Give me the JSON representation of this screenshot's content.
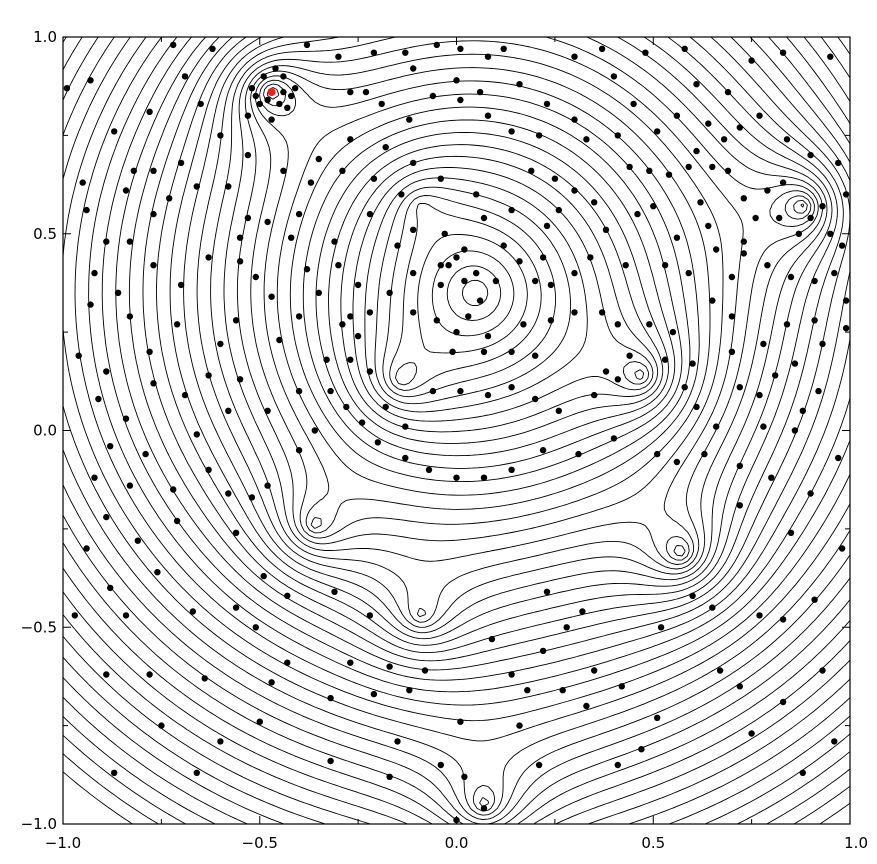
{
  "chart_data": {
    "type": "contour",
    "title": "",
    "xlabel": "",
    "ylabel": "",
    "xlim": [
      -1.0,
      1.0
    ],
    "ylim": [
      -1.0,
      1.0
    ],
    "x_ticks": [
      "−1.0",
      "−0.5",
      "0.0",
      "0.5",
      "1.0"
    ],
    "y_ticks": [
      "−1.0",
      "−0.5",
      "0.0",
      "0.5",
      "1.0"
    ],
    "x_tick_values": [
      -1.0,
      -0.5,
      0.0,
      0.5,
      1.0
    ],
    "y_tick_values": [
      -1.0,
      -0.5,
      0.0,
      0.5,
      1.0
    ],
    "grid": false,
    "line_color": "#000000",
    "point_color": "#000000",
    "highlight_color": "#e8231c",
    "highlight_point": {
      "x": -0.47,
      "y": 0.86
    },
    "contour_centers": [
      {
        "x": -0.47,
        "y": 0.86,
        "strength": 1.0
      },
      {
        "x": 0.88,
        "y": 0.57,
        "strength": 1.0
      },
      {
        "x": -0.09,
        "y": 0.57,
        "strength": 0.35
      },
      {
        "x": -0.14,
        "y": 0.13,
        "strength": 0.6
      },
      {
        "x": 0.47,
        "y": 0.14,
        "strength": 0.8
      },
      {
        "x": -0.36,
        "y": -0.24,
        "strength": 0.7
      },
      {
        "x": 0.57,
        "y": -0.31,
        "strength": 0.9
      },
      {
        "x": -0.09,
        "y": -0.47,
        "strength": 0.6
      },
      {
        "x": 0.07,
        "y": -0.95,
        "strength": 0.8
      }
    ],
    "points": [
      [
        -0.99,
        0.87
      ],
      [
        -0.93,
        0.89
      ],
      [
        -0.87,
        0.76
      ],
      [
        -0.82,
        0.66
      ],
      [
        -0.78,
        0.81
      ],
      [
        -0.95,
        0.63
      ],
      [
        -0.94,
        0.56
      ],
      [
        -0.84,
        0.61
      ],
      [
        -0.89,
        0.48
      ],
      [
        -0.77,
        0.55
      ],
      [
        -0.83,
        0.48
      ],
      [
        -0.92,
        0.4
      ],
      [
        -0.86,
        0.35
      ],
      [
        -0.77,
        0.42
      ],
      [
        -0.93,
        0.32
      ],
      [
        -0.83,
        0.29
      ],
      [
        -0.96,
        0.19
      ],
      [
        -0.89,
        0.15
      ],
      [
        -0.78,
        0.2
      ],
      [
        -0.71,
        0.27
      ],
      [
        -0.69,
        0.09
      ],
      [
        -0.77,
        0.12
      ],
      [
        -0.91,
        0.08
      ],
      [
        -0.84,
        0.03
      ],
      [
        -0.88,
        -0.04
      ],
      [
        -0.79,
        -0.06
      ],
      [
        -0.92,
        -0.12
      ],
      [
        -0.83,
        -0.14
      ],
      [
        -0.72,
        -0.15
      ],
      [
        -0.89,
        -0.22
      ],
      [
        -0.81,
        -0.28
      ],
      [
        -0.71,
        -0.23
      ],
      [
        -0.94,
        -0.3
      ],
      [
        -0.76,
        -0.36
      ],
      [
        -0.88,
        -0.4
      ],
      [
        -0.97,
        -0.47
      ],
      [
        -0.84,
        -0.47
      ],
      [
        -0.67,
        -0.46
      ],
      [
        -0.89,
        -0.62
      ],
      [
        -0.78,
        -0.62
      ],
      [
        -0.64,
        -0.63
      ],
      [
        -0.75,
        -0.75
      ],
      [
        -0.87,
        -0.87
      ],
      [
        -0.66,
        -0.87
      ],
      [
        -0.6,
        -0.79
      ],
      [
        -0.5,
        -0.74
      ],
      [
        -0.43,
        -0.59
      ],
      [
        -0.32,
        -0.68
      ],
      [
        -0.47,
        -0.64
      ],
      [
        -0.56,
        -0.45
      ],
      [
        -0.51,
        -0.5
      ],
      [
        -0.43,
        -0.42
      ],
      [
        -0.49,
        -0.37
      ],
      [
        -0.31,
        -0.41
      ],
      [
        -0.27,
        -0.59
      ],
      [
        -0.22,
        -0.47
      ],
      [
        -0.17,
        -0.6
      ],
      [
        -0.08,
        -0.61
      ],
      [
        -0.12,
        -0.66
      ],
      [
        -0.21,
        -0.67
      ],
      [
        -0.32,
        -0.84
      ],
      [
        -0.17,
        -0.88
      ],
      [
        -0.15,
        -0.79
      ],
      [
        0.01,
        -0.74
      ],
      [
        -0.04,
        -0.85
      ],
      [
        0.02,
        -0.88
      ],
      [
        0.0,
        -0.99
      ],
      [
        0.07,
        -0.96
      ],
      [
        0.16,
        -0.75
      ],
      [
        0.21,
        -0.85
      ],
      [
        0.18,
        -0.66
      ],
      [
        0.09,
        -0.53
      ],
      [
        0.14,
        -0.62
      ],
      [
        0.22,
        -0.56
      ],
      [
        0.28,
        -0.5
      ],
      [
        0.23,
        -0.41
      ],
      [
        0.32,
        -0.46
      ],
      [
        0.35,
        -0.61
      ],
      [
        0.27,
        -0.66
      ],
      [
        0.33,
        -0.7
      ],
      [
        0.42,
        -0.65
      ],
      [
        0.41,
        -0.85
      ],
      [
        0.47,
        -0.81
      ],
      [
        0.51,
        -0.73
      ],
      [
        0.52,
        -0.5
      ],
      [
        0.6,
        -0.42
      ],
      [
        0.65,
        -0.45
      ],
      [
        0.67,
        -0.61
      ],
      [
        0.72,
        -0.65
      ],
      [
        0.75,
        -0.77
      ],
      [
        0.83,
        -0.69
      ],
      [
        0.88,
        -0.87
      ],
      [
        0.96,
        -0.79
      ],
      [
        0.93,
        -0.61
      ],
      [
        0.77,
        -0.47
      ],
      [
        0.83,
        -0.48
      ],
      [
        0.91,
        -0.43
      ],
      [
        0.98,
        -0.3
      ],
      [
        0.85,
        -0.26
      ],
      [
        0.72,
        -0.19
      ],
      [
        0.8,
        -0.12
      ],
      [
        0.9,
        -0.16
      ],
      [
        0.97,
        -0.07
      ],
      [
        0.86,
        0.0
      ],
      [
        0.78,
        0.01
      ],
      [
        0.72,
        -0.09
      ],
      [
        0.66,
        0.01
      ],
      [
        0.63,
        -0.06
      ],
      [
        0.56,
        -0.08
      ],
      [
        0.51,
        -0.06
      ],
      [
        0.4,
        -0.02
      ],
      [
        0.31,
        -0.06
      ],
      [
        0.22,
        -0.05
      ],
      [
        0.14,
        -0.1
      ],
      [
        0.07,
        -0.12
      ],
      [
        0.0,
        -0.12
      ],
      [
        -0.07,
        -0.1
      ],
      [
        -0.13,
        -0.07
      ],
      [
        -0.2,
        -0.03
      ],
      [
        -0.24,
        0.02
      ],
      [
        -0.28,
        0.06
      ],
      [
        -0.32,
        0.1
      ],
      [
        -0.33,
        0.18
      ],
      [
        -0.27,
        0.18
      ],
      [
        -0.22,
        0.15
      ],
      [
        -0.18,
        0.06
      ],
      [
        -0.13,
        0.01
      ],
      [
        -0.06,
        0.1
      ],
      [
        0.01,
        0.1
      ],
      [
        0.08,
        0.09
      ],
      [
        0.14,
        0.11
      ],
      [
        0.2,
        0.08
      ],
      [
        0.26,
        0.05
      ],
      [
        0.35,
        0.09
      ],
      [
        0.38,
        0.15
      ],
      [
        0.41,
        0.13
      ],
      [
        0.44,
        0.19
      ],
      [
        0.53,
        0.18
      ],
      [
        0.58,
        0.11
      ],
      [
        0.61,
        0.06
      ],
      [
        0.6,
        0.17
      ],
      [
        0.55,
        0.25
      ],
      [
        0.49,
        0.27
      ],
      [
        0.41,
        0.27
      ],
      [
        0.37,
        0.3
      ],
      [
        0.3,
        0.3
      ],
      [
        0.24,
        0.28
      ],
      [
        0.17,
        0.27
      ],
      [
        0.08,
        0.24
      ],
      [
        0.0,
        0.25
      ],
      [
        -0.05,
        0.28
      ],
      [
        -0.11,
        0.3
      ],
      [
        -0.17,
        0.35
      ],
      [
        -0.22,
        0.3
      ],
      [
        -0.27,
        0.29
      ],
      [
        -0.25,
        0.37
      ],
      [
        -0.3,
        0.42
      ],
      [
        -0.35,
        0.35
      ],
      [
        -0.4,
        0.29
      ],
      [
        -0.45,
        0.23
      ],
      [
        -0.47,
        0.34
      ],
      [
        -0.51,
        0.39
      ],
      [
        -0.55,
        0.43
      ],
      [
        -0.56,
        0.28
      ],
      [
        -0.6,
        0.22
      ],
      [
        -0.55,
        0.13
      ],
      [
        -0.58,
        0.05
      ],
      [
        -0.48,
        0.05
      ],
      [
        -0.4,
        0.1
      ],
      [
        -0.36,
        0.0
      ],
      [
        -0.4,
        -0.05
      ],
      [
        -0.48,
        -0.14
      ],
      [
        -0.52,
        -0.17
      ],
      [
        -0.56,
        -0.26
      ],
      [
        -0.58,
        -0.16
      ],
      [
        -0.63,
        -0.1
      ],
      [
        -0.66,
        -0.01
      ],
      [
        -0.63,
        0.14
      ],
      [
        -0.7,
        0.37
      ],
      [
        -0.63,
        0.44
      ],
      [
        -0.55,
        0.49
      ],
      [
        -0.48,
        0.53
      ],
      [
        -0.42,
        0.49
      ],
      [
        -0.4,
        0.55
      ],
      [
        -0.37,
        0.63
      ],
      [
        -0.29,
        0.66
      ],
      [
        -0.21,
        0.64
      ],
      [
        -0.14,
        0.6
      ],
      [
        -0.11,
        0.51
      ],
      [
        -0.03,
        0.5
      ],
      [
        0.02,
        0.46
      ],
      [
        0.07,
        0.54
      ],
      [
        0.12,
        0.47
      ],
      [
        0.16,
        0.43
      ],
      [
        0.1,
        0.38
      ],
      [
        0.02,
        0.38
      ],
      [
        -0.04,
        0.42
      ],
      [
        -0.11,
        0.4
      ],
      [
        -0.15,
        0.47
      ],
      [
        -0.22,
        0.55
      ],
      [
        -0.31,
        0.48
      ],
      [
        -0.38,
        0.41
      ],
      [
        -0.29,
        0.27
      ],
      [
        -0.25,
        0.24
      ],
      [
        0.06,
        0.33
      ],
      [
        -0.04,
        0.37
      ],
      [
        -0.02,
        0.42
      ],
      [
        0.0,
        0.44
      ],
      [
        0.05,
        0.4
      ],
      [
        0.03,
        0.29
      ],
      [
        -0.01,
        0.2
      ],
      [
        0.07,
        0.2
      ],
      [
        0.14,
        0.2
      ],
      [
        0.2,
        0.19
      ],
      [
        0.2,
        0.38
      ],
      [
        0.22,
        0.44
      ],
      [
        0.23,
        0.52
      ],
      [
        0.14,
        0.56
      ],
      [
        0.05,
        0.6
      ],
      [
        -0.04,
        0.64
      ],
      [
        -0.11,
        0.68
      ],
      [
        -0.18,
        0.72
      ],
      [
        -0.27,
        0.74
      ],
      [
        -0.35,
        0.69
      ],
      [
        -0.44,
        0.66
      ],
      [
        -0.53,
        0.7
      ],
      [
        -0.6,
        0.75
      ],
      [
        -0.65,
        0.83
      ],
      [
        -0.69,
        0.9
      ],
      [
        -0.7,
        0.68
      ],
      [
        -0.66,
        0.62
      ],
      [
        -0.73,
        0.59
      ],
      [
        -0.77,
        0.66
      ],
      [
        -0.58,
        0.62
      ],
      [
        -0.53,
        0.54
      ],
      [
        -0.27,
        0.86
      ],
      [
        -0.23,
        0.86
      ],
      [
        -0.19,
        0.83
      ],
      [
        -0.21,
        0.96
      ],
      [
        -0.11,
        0.92
      ],
      [
        -0.12,
        0.79
      ],
      [
        -0.06,
        0.85
      ],
      [
        0.0,
        0.89
      ],
      [
        0.01,
        0.84
      ],
      [
        0.06,
        0.86
      ],
      [
        0.08,
        0.8
      ],
      [
        0.14,
        0.76
      ],
      [
        0.21,
        0.75
      ],
      [
        0.19,
        0.66
      ],
      [
        0.25,
        0.64
      ],
      [
        0.3,
        0.61
      ],
      [
        0.26,
        0.56
      ],
      [
        0.35,
        0.58
      ],
      [
        0.38,
        0.51
      ],
      [
        0.34,
        0.44
      ],
      [
        0.3,
        0.4
      ],
      [
        0.24,
        0.37
      ],
      [
        0.43,
        0.42
      ],
      [
        0.46,
        0.55
      ],
      [
        0.5,
        0.57
      ],
      [
        0.54,
        0.65
      ],
      [
        0.49,
        0.66
      ],
      [
        0.44,
        0.67
      ],
      [
        0.41,
        0.75
      ],
      [
        0.33,
        0.74
      ],
      [
        0.3,
        0.79
      ],
      [
        0.23,
        0.83
      ],
      [
        0.16,
        0.88
      ],
      [
        0.08,
        0.95
      ],
      [
        0.01,
        0.97
      ],
      [
        -0.05,
        0.98
      ],
      [
        -0.13,
        0.96
      ],
      [
        0.3,
        0.95
      ],
      [
        0.4,
        0.9
      ],
      [
        0.45,
        0.83
      ],
      [
        0.51,
        0.76
      ],
      [
        0.56,
        0.8
      ],
      [
        0.61,
        0.88
      ],
      [
        0.64,
        0.78
      ],
      [
        0.61,
        0.71
      ],
      [
        0.59,
        0.67
      ],
      [
        0.62,
        0.58
      ],
      [
        0.64,
        0.52
      ],
      [
        0.56,
        0.49
      ],
      [
        0.53,
        0.42
      ],
      [
        0.59,
        0.4
      ],
      [
        0.65,
        0.33
      ],
      [
        0.7,
        0.29
      ],
      [
        0.7,
        0.39
      ],
      [
        0.73,
        0.45
      ],
      [
        0.66,
        0.46
      ],
      [
        0.76,
        0.54
      ],
      [
        0.79,
        0.61
      ],
      [
        0.83,
        0.63
      ],
      [
        0.82,
        0.54
      ],
      [
        0.87,
        0.5
      ],
      [
        0.9,
        0.54
      ],
      [
        0.93,
        0.57
      ],
      [
        0.95,
        0.5
      ],
      [
        0.98,
        0.47
      ],
      [
        0.99,
        0.6
      ],
      [
        0.97,
        0.68
      ],
      [
        0.9,
        0.7
      ],
      [
        0.84,
        0.74
      ],
      [
        0.77,
        0.8
      ],
      [
        0.72,
        0.77
      ],
      [
        0.68,
        0.74
      ],
      [
        0.69,
        0.66
      ],
      [
        0.73,
        0.59
      ],
      [
        0.73,
        0.48
      ],
      [
        0.79,
        0.42
      ],
      [
        0.85,
        0.39
      ],
      [
        0.91,
        0.38
      ],
      [
        0.96,
        0.4
      ],
      [
        0.99,
        0.33
      ],
      [
        0.99,
        0.26
      ],
      [
        0.93,
        0.22
      ],
      [
        0.86,
        0.17
      ],
      [
        0.81,
        0.14
      ],
      [
        0.77,
        0.09
      ],
      [
        0.72,
        0.11
      ],
      [
        0.7,
        0.2
      ],
      [
        0.78,
        0.22
      ],
      [
        0.84,
        0.27
      ],
      [
        0.91,
        0.28
      ],
      [
        0.92,
        0.1
      ],
      [
        0.88,
        0.05
      ],
      [
        0.95,
        0.95
      ],
      [
        0.83,
        0.96
      ],
      [
        0.75,
        0.94
      ],
      [
        0.69,
        0.86
      ],
      [
        0.65,
        0.67
      ],
      [
        0.58,
        0.97
      ],
      [
        0.48,
        0.96
      ],
      [
        0.37,
        0.97
      ],
      [
        0.12,
        0.97
      ],
      [
        -0.3,
        0.95
      ],
      [
        -0.38,
        0.98
      ],
      [
        -0.62,
        0.97
      ],
      [
        -0.72,
        0.98
      ],
      [
        -0.46,
        0.92
      ],
      [
        -0.49,
        0.9
      ],
      [
        -0.44,
        0.9
      ],
      [
        -0.52,
        0.87
      ],
      [
        -0.41,
        0.87
      ],
      [
        -0.48,
        0.84
      ],
      [
        -0.45,
        0.83
      ],
      [
        -0.5,
        0.83
      ],
      [
        -0.43,
        0.82
      ],
      [
        -0.53,
        0.8
      ],
      [
        -0.47,
        0.79
      ],
      [
        -0.42,
        0.85
      ],
      [
        -0.51,
        0.85
      ],
      [
        -0.44,
        0.86
      ]
    ]
  }
}
